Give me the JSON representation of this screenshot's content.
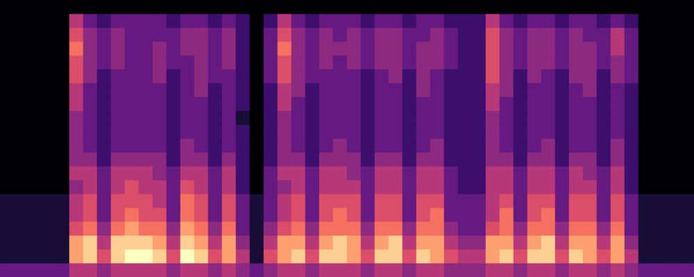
{
  "chart_data": {
    "type": "heatmap",
    "color": "magma",
    "tick_labels": false,
    "color_range": [
      0,
      10
    ],
    "values": [
      [
        3,
        3,
        3,
        3,
        3,
        5,
        5,
        4,
        5,
        5,
        5,
        5,
        4,
        5,
        5,
        4,
        5,
        4,
        3,
        4,
        5,
        5,
        4,
        5,
        5,
        5,
        4,
        5,
        5,
        4,
        5,
        5,
        4,
        4,
        4,
        5,
        5,
        4,
        5,
        5,
        4,
        5,
        5,
        4,
        5,
        4,
        3,
        3,
        3,
        3
      ],
      [
        1,
        1,
        1,
        1,
        1,
        8,
        9,
        6,
        9,
        10,
        10,
        9,
        6,
        10,
        9,
        6,
        8,
        5,
        1,
        6,
        8,
        9,
        6,
        9,
        9,
        8,
        6,
        9,
        9,
        6,
        9,
        8,
        6,
        5,
        5,
        8,
        9,
        6,
        9,
        9,
        6,
        9,
        8,
        6,
        8,
        5,
        1,
        1,
        1,
        1
      ],
      [
        1,
        1,
        1,
        1,
        1,
        8,
        9,
        5,
        9,
        9,
        9,
        8,
        5,
        9,
        8,
        5,
        8,
        4,
        1,
        5,
        8,
        8,
        5,
        8,
        9,
        8,
        5,
        8,
        9,
        5,
        8,
        8,
        5,
        4,
        4,
        8,
        8,
        5,
        8,
        9,
        5,
        8,
        8,
        5,
        8,
        4,
        1,
        1,
        1,
        1
      ],
      [
        1,
        1,
        1,
        1,
        1,
        6,
        7,
        4,
        7,
        8,
        7,
        7,
        4,
        8,
        7,
        4,
        7,
        3,
        1,
        4,
        6,
        7,
        4,
        7,
        7,
        7,
        4,
        7,
        7,
        4,
        7,
        7,
        4,
        3,
        3,
        6,
        7,
        4,
        7,
        7,
        4,
        7,
        7,
        4,
        7,
        3,
        1,
        1,
        1,
        1
      ],
      [
        1,
        1,
        1,
        1,
        1,
        5,
        6,
        3,
        6,
        7,
        6,
        6,
        3,
        7,
        6,
        3,
        6,
        3,
        1,
        3,
        5,
        6,
        3,
        6,
        7,
        6,
        3,
        6,
        6,
        3,
        6,
        7,
        3,
        3,
        3,
        5,
        7,
        3,
        6,
        7,
        3,
        6,
        6,
        3,
        6,
        3,
        1,
        1,
        1,
        1
      ],
      [
        1,
        1,
        1,
        1,
        1,
        5,
        6,
        3,
        6,
        6,
        6,
        5,
        3,
        7,
        6,
        3,
        6,
        3,
        1,
        3,
        5,
        6,
        3,
        6,
        6,
        6,
        3,
        6,
        6,
        3,
        6,
        6,
        3,
        3,
        3,
        5,
        6,
        3,
        6,
        6,
        3,
        6,
        6,
        3,
        6,
        3,
        1,
        1,
        1,
        1
      ],
      [
        0,
        0,
        0,
        0,
        0,
        4,
        5,
        3,
        5,
        6,
        5,
        5,
        3,
        6,
        5,
        3,
        5,
        2,
        0,
        3,
        4,
        5,
        3,
        5,
        5,
        5,
        3,
        5,
        5,
        3,
        5,
        5,
        3,
        2,
        2,
        5,
        5,
        3,
        5,
        5,
        3,
        5,
        5,
        3,
        5,
        2,
        0,
        0,
        0,
        0
      ],
      [
        0,
        0,
        0,
        0,
        0,
        5,
        5,
        3,
        5,
        5,
        5,
        4,
        3,
        5,
        5,
        3,
        5,
        2,
        0,
        3,
        5,
        5,
        3,
        5,
        5,
        4,
        3,
        5,
        5,
        3,
        5,
        5,
        3,
        2,
        2,
        5,
        5,
        3,
        5,
        5,
        3,
        5,
        4,
        3,
        5,
        2,
        0,
        0,
        0,
        0
      ],
      [
        0,
        0,
        0,
        0,
        0,
        4,
        4,
        2,
        4,
        4,
        4,
        4,
        2,
        4,
        4,
        2,
        4,
        2,
        0,
        2,
        4,
        4,
        2,
        4,
        4,
        4,
        2,
        4,
        4,
        2,
        4,
        4,
        2,
        2,
        2,
        4,
        4,
        2,
        4,
        4,
        2,
        4,
        4,
        2,
        4,
        2,
        0,
        0,
        0,
        0
      ],
      [
        0,
        0,
        0,
        0,
        0,
        4,
        3,
        2,
        3,
        3,
        3,
        3,
        2,
        4,
        3,
        2,
        3,
        2,
        0,
        2,
        4,
        3,
        2,
        3,
        4,
        3,
        2,
        3,
        3,
        2,
        3,
        4,
        2,
        2,
        2,
        4,
        3,
        2,
        3,
        4,
        2,
        3,
        3,
        2,
        4,
        2,
        0,
        0,
        0,
        0
      ],
      [
        0,
        0,
        0,
        0,
        0,
        4,
        3,
        2,
        3,
        3,
        3,
        3,
        2,
        3,
        3,
        2,
        3,
        2,
        0,
        2,
        4,
        3,
        2,
        3,
        3,
        3,
        2,
        3,
        3,
        2,
        3,
        3,
        2,
        2,
        2,
        4,
        3,
        2,
        3,
        3,
        2,
        3,
        3,
        2,
        3,
        2,
        0,
        0,
        0,
        0
      ],
      [
        0,
        0,
        0,
        0,
        0,
        4,
        3,
        2,
        3,
        3,
        3,
        3,
        2,
        3,
        3,
        2,
        3,
        1,
        0,
        2,
        4,
        3,
        2,
        3,
        3,
        3,
        2,
        3,
        3,
        2,
        3,
        3,
        2,
        2,
        2,
        4,
        3,
        2,
        3,
        3,
        2,
        3,
        3,
        2,
        3,
        2,
        0,
        0,
        0,
        0
      ],
      [
        0,
        0,
        0,
        0,
        0,
        5,
        3,
        2,
        3,
        3,
        3,
        3,
        2,
        3,
        3,
        2,
        3,
        2,
        0,
        2,
        5,
        3,
        2,
        3,
        3,
        3,
        2,
        3,
        3,
        2,
        3,
        3,
        2,
        2,
        2,
        5,
        3,
        2,
        3,
        3,
        2,
        3,
        3,
        2,
        3,
        2,
        0,
        0,
        0,
        0
      ],
      [
        0,
        0,
        0,
        0,
        0,
        5,
        3,
        2,
        3,
        3,
        3,
        3,
        2,
        3,
        4,
        2,
        3,
        2,
        0,
        2,
        5,
        4,
        2,
        3,
        3,
        3,
        2,
        3,
        3,
        2,
        4,
        3,
        2,
        2,
        2,
        5,
        4,
        2,
        3,
        3,
        2,
        3,
        4,
        2,
        3,
        2,
        0,
        0,
        0,
        0
      ],
      [
        0,
        0,
        0,
        0,
        0,
        6,
        4,
        2,
        3,
        3,
        3,
        4,
        2,
        3,
        4,
        3,
        3,
        2,
        0,
        3,
        6,
        4,
        3,
        3,
        3,
        3,
        2,
        3,
        4,
        2,
        4,
        3,
        2,
        2,
        2,
        6,
        4,
        2,
        4,
        3,
        2,
        4,
        4,
        2,
        4,
        3,
        0,
        0,
        0,
        0
      ],
      [
        0,
        0,
        0,
        0,
        0,
        6,
        4,
        3,
        4,
        3,
        3,
        4,
        3,
        3,
        4,
        3,
        4,
        2,
        0,
        3,
        6,
        4,
        3,
        4,
        3,
        4,
        3,
        4,
        4,
        3,
        4,
        4,
        3,
        2,
        2,
        6,
        4,
        3,
        4,
        4,
        3,
        4,
        4,
        3,
        4,
        3,
        0,
        0,
        0,
        0
      ],
      [
        0,
        0,
        0,
        0,
        0,
        7,
        4,
        3,
        4,
        3,
        3,
        4,
        3,
        4,
        4,
        3,
        4,
        2,
        0,
        3,
        7,
        4,
        3,
        4,
        4,
        4,
        3,
        4,
        4,
        3,
        4,
        4,
        3,
        2,
        2,
        6,
        4,
        3,
        4,
        4,
        3,
        4,
        4,
        3,
        5,
        3,
        0,
        0,
        0,
        0
      ],
      [
        0,
        0,
        0,
        0,
        0,
        6,
        4,
        3,
        4,
        3,
        3,
        3,
        3,
        4,
        4,
        3,
        4,
        2,
        0,
        3,
        6,
        4,
        3,
        4,
        3,
        4,
        3,
        4,
        4,
        3,
        3,
        4,
        3,
        2,
        2,
        6,
        4,
        3,
        4,
        4,
        3,
        4,
        3,
        3,
        5,
        3,
        0,
        0,
        0,
        0
      ],
      [
        0,
        0,
        0,
        0,
        0,
        5,
        3,
        2,
        3,
        3,
        3,
        3,
        2,
        3,
        3,
        2,
        3,
        2,
        0,
        2,
        5,
        3,
        2,
        3,
        3,
        3,
        2,
        3,
        3,
        2,
        3,
        3,
        2,
        2,
        2,
        5,
        3,
        2,
        3,
        3,
        2,
        3,
        3,
        2,
        3,
        2,
        0,
        0,
        0,
        0
      ],
      [
        0,
        0,
        0,
        0,
        0,
        0,
        0,
        0,
        0,
        0,
        0,
        0,
        0,
        0,
        0,
        0,
        0,
        0,
        0,
        0,
        0,
        0,
        0,
        0,
        0,
        0,
        0,
        0,
        0,
        0,
        0,
        0,
        0,
        0,
        0,
        0,
        0,
        0,
        0,
        0,
        0,
        0,
        0,
        0,
        0,
        0,
        0,
        0,
        0,
        0
      ]
    ]
  }
}
